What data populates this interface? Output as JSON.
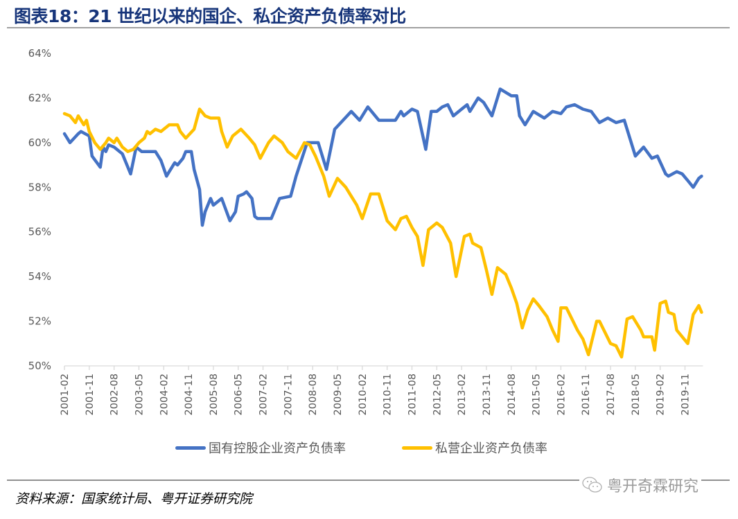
{
  "header": {
    "title": "图表18：21 世纪以来的国企、私企资产负债率对比"
  },
  "legend": [
    {
      "label": "国有控股企业资产负债率",
      "color": "#4472c4"
    },
    {
      "label": "私营企业资产负债率",
      "color": "#ffc000"
    }
  ],
  "footer": {
    "source": "资料来源：国家统计局、粤开证券研究院",
    "watermark": "粤开奇霖研究",
    "watermark_icon": "wechat-icon"
  },
  "chart_data": {
    "type": "line",
    "title": "21 世纪以来的国企、私企资产负债率对比",
    "xlabel": "",
    "ylabel": "",
    "x_start": "2001-02",
    "x_end": "2020-05",
    "ylim": [
      50,
      64
    ],
    "yticks": [
      50,
      52,
      54,
      56,
      58,
      60,
      62,
      64
    ],
    "ytick_labels": [
      "50%",
      "52%",
      "54%",
      "56%",
      "58%",
      "60%",
      "62%",
      "64%"
    ],
    "xtick_labels": [
      "2001-02",
      "2001-11",
      "2002-08",
      "2003-05",
      "2004-02",
      "2004-11",
      "2005-08",
      "2006-05",
      "2007-02",
      "2007-11",
      "2008-08",
      "2009-05",
      "2010-02",
      "2010-11",
      "2011-08",
      "2012-05",
      "2013-02",
      "2013-11",
      "2014-08",
      "2015-05",
      "2016-02",
      "2016-11",
      "2017-08",
      "2018-05",
      "2019-02",
      "2019-11"
    ],
    "grid": false,
    "legend_position": "bottom",
    "series": [
      {
        "name": "国有控股企业资产负债率",
        "color": "#4472c4",
        "points": [
          [
            "2001-02",
            60.4
          ],
          [
            "2001-04",
            60.0
          ],
          [
            "2001-07",
            60.4
          ],
          [
            "2001-08",
            60.5
          ],
          [
            "2001-11",
            60.3
          ],
          [
            "2001-12",
            59.4
          ],
          [
            "2002-03",
            58.9
          ],
          [
            "2002-04",
            59.8
          ],
          [
            "2002-05",
            59.6
          ],
          [
            "2002-06",
            59.9
          ],
          [
            "2002-08",
            59.8
          ],
          [
            "2002-11",
            59.5
          ],
          [
            "2003-02",
            58.6
          ],
          [
            "2003-04",
            59.8
          ],
          [
            "2003-06",
            59.6
          ],
          [
            "2003-08",
            59.6
          ],
          [
            "2003-11",
            59.6
          ],
          [
            "2004-01",
            59.2
          ],
          [
            "2004-03",
            58.5
          ],
          [
            "2004-04",
            58.7
          ],
          [
            "2004-06",
            59.1
          ],
          [
            "2004-07",
            59.0
          ],
          [
            "2004-09",
            59.3
          ],
          [
            "2004-10",
            59.6
          ],
          [
            "2004-12",
            59.6
          ],
          [
            "2005-01",
            58.8
          ],
          [
            "2005-03",
            57.9
          ],
          [
            "2005-04",
            56.3
          ],
          [
            "2005-05",
            56.9
          ],
          [
            "2005-07",
            57.5
          ],
          [
            "2005-08",
            57.2
          ],
          [
            "2005-11",
            57.5
          ],
          [
            "2006-02",
            56.5
          ],
          [
            "2006-04",
            56.9
          ],
          [
            "2006-05",
            57.6
          ],
          [
            "2006-07",
            57.7
          ],
          [
            "2006-08",
            57.8
          ],
          [
            "2006-10",
            57.5
          ],
          [
            "2006-11",
            56.7
          ],
          [
            "2006-12",
            56.6
          ],
          [
            "2007-05",
            56.6
          ],
          [
            "2007-08",
            57.5
          ],
          [
            "2007-12",
            57.6
          ],
          [
            "2008-02",
            58.5
          ],
          [
            "2008-06",
            60.0
          ],
          [
            "2008-10",
            60.0
          ],
          [
            "2009-01",
            58.8
          ],
          [
            "2009-04",
            60.6
          ],
          [
            "2009-07",
            61.0
          ],
          [
            "2009-10",
            61.4
          ],
          [
            "2010-01",
            61.0
          ],
          [
            "2010-04",
            61.6
          ],
          [
            "2010-08",
            61.0
          ],
          [
            "2011-02",
            61.0
          ],
          [
            "2011-04",
            61.4
          ],
          [
            "2011-05",
            61.2
          ],
          [
            "2011-08",
            61.5
          ],
          [
            "2011-10",
            61.4
          ],
          [
            "2012-01",
            59.7
          ],
          [
            "2012-03",
            61.4
          ],
          [
            "2012-05",
            61.4
          ],
          [
            "2012-07",
            61.6
          ],
          [
            "2012-09",
            61.7
          ],
          [
            "2012-11",
            61.2
          ],
          [
            "2013-02",
            61.5
          ],
          [
            "2013-04",
            61.7
          ],
          [
            "2013-05",
            61.4
          ],
          [
            "2013-08",
            62.0
          ],
          [
            "2013-10",
            61.8
          ],
          [
            "2014-01",
            61.2
          ],
          [
            "2014-04",
            62.4
          ],
          [
            "2014-08",
            62.1
          ],
          [
            "2014-10",
            62.1
          ],
          [
            "2014-11",
            61.2
          ],
          [
            "2015-01",
            60.8
          ],
          [
            "2015-04",
            61.4
          ],
          [
            "2015-08",
            61.1
          ],
          [
            "2015-11",
            61.4
          ],
          [
            "2016-02",
            61.3
          ],
          [
            "2016-04",
            61.6
          ],
          [
            "2016-07",
            61.7
          ],
          [
            "2016-10",
            61.5
          ],
          [
            "2017-01",
            61.4
          ],
          [
            "2017-04",
            60.9
          ],
          [
            "2017-07",
            61.1
          ],
          [
            "2017-10",
            60.9
          ],
          [
            "2018-01",
            61.0
          ],
          [
            "2018-05",
            59.4
          ],
          [
            "2018-08",
            59.8
          ],
          [
            "2018-11",
            59.3
          ],
          [
            "2019-01",
            59.4
          ],
          [
            "2019-04",
            58.6
          ],
          [
            "2019-05",
            58.5
          ],
          [
            "2019-08",
            58.7
          ],
          [
            "2019-10",
            58.6
          ],
          [
            "2019-12",
            58.3
          ],
          [
            "2020-02",
            58.0
          ],
          [
            "2020-04",
            58.4
          ],
          [
            "2020-05",
            58.5
          ]
        ]
      },
      {
        "name": "私营企业资产负债率",
        "color": "#ffc000",
        "points": [
          [
            "2001-02",
            61.3
          ],
          [
            "2001-04",
            61.2
          ],
          [
            "2001-06",
            60.9
          ],
          [
            "2001-07",
            61.2
          ],
          [
            "2001-09",
            60.8
          ],
          [
            "2001-10",
            61.0
          ],
          [
            "2001-11",
            60.5
          ],
          [
            "2002-01",
            60.0
          ],
          [
            "2002-03",
            59.7
          ],
          [
            "2002-05",
            60.0
          ],
          [
            "2002-06",
            60.2
          ],
          [
            "2002-08",
            60.0
          ],
          [
            "2002-09",
            60.2
          ],
          [
            "2002-11",
            59.8
          ],
          [
            "2003-01",
            59.6
          ],
          [
            "2003-03",
            59.7
          ],
          [
            "2003-05",
            60.0
          ],
          [
            "2003-07",
            60.2
          ],
          [
            "2003-08",
            60.5
          ],
          [
            "2003-09",
            60.4
          ],
          [
            "2003-11",
            60.6
          ],
          [
            "2004-01",
            60.5
          ],
          [
            "2004-02",
            60.6
          ],
          [
            "2004-04",
            60.8
          ],
          [
            "2004-07",
            60.8
          ],
          [
            "2004-08",
            60.5
          ],
          [
            "2004-10",
            60.2
          ],
          [
            "2005-01",
            60.6
          ],
          [
            "2005-03",
            61.5
          ],
          [
            "2005-05",
            61.2
          ],
          [
            "2005-07",
            61.1
          ],
          [
            "2005-10",
            61.1
          ],
          [
            "2005-11",
            60.5
          ],
          [
            "2006-01",
            59.8
          ],
          [
            "2006-03",
            60.3
          ],
          [
            "2006-06",
            60.6
          ],
          [
            "2006-09",
            60.2
          ],
          [
            "2006-11",
            59.9
          ],
          [
            "2007-01",
            59.3
          ],
          [
            "2007-04",
            60.0
          ],
          [
            "2007-06",
            60.3
          ],
          [
            "2007-09",
            60.0
          ],
          [
            "2007-11",
            59.6
          ],
          [
            "2008-02",
            59.3
          ],
          [
            "2008-05",
            60.0
          ],
          [
            "2008-07",
            59.9
          ],
          [
            "2008-09",
            59.4
          ],
          [
            "2008-12",
            58.5
          ],
          [
            "2009-02",
            57.6
          ],
          [
            "2009-05",
            58.4
          ],
          [
            "2009-08",
            58.0
          ],
          [
            "2009-12",
            57.2
          ],
          [
            "2010-02",
            56.6
          ],
          [
            "2010-05",
            57.7
          ],
          [
            "2010-08",
            57.7
          ],
          [
            "2010-11",
            56.5
          ],
          [
            "2011-02",
            56.1
          ],
          [
            "2011-04",
            56.6
          ],
          [
            "2011-06",
            56.7
          ],
          [
            "2011-08",
            56.2
          ],
          [
            "2011-10",
            55.8
          ],
          [
            "2011-12",
            54.5
          ],
          [
            "2012-02",
            56.1
          ],
          [
            "2012-05",
            56.4
          ],
          [
            "2012-07",
            56.2
          ],
          [
            "2012-10",
            55.5
          ],
          [
            "2012-12",
            54.0
          ],
          [
            "2013-03",
            55.8
          ],
          [
            "2013-05",
            55.9
          ],
          [
            "2013-06",
            55.5
          ],
          [
            "2013-09",
            55.3
          ],
          [
            "2013-11",
            54.3
          ],
          [
            "2014-01",
            53.2
          ],
          [
            "2014-03",
            54.4
          ],
          [
            "2014-06",
            54.1
          ],
          [
            "2014-08",
            53.5
          ],
          [
            "2014-10",
            52.8
          ],
          [
            "2014-12",
            51.7
          ],
          [
            "2015-02",
            52.5
          ],
          [
            "2015-04",
            53.0
          ],
          [
            "2015-06",
            52.7
          ],
          [
            "2015-09",
            52.2
          ],
          [
            "2015-11",
            51.6
          ],
          [
            "2016-01",
            51.1
          ],
          [
            "2016-02",
            52.6
          ],
          [
            "2016-04",
            52.6
          ],
          [
            "2016-06",
            52.1
          ],
          [
            "2016-08",
            51.6
          ],
          [
            "2016-10",
            51.2
          ],
          [
            "2016-12",
            50.5
          ],
          [
            "2017-03",
            52.0
          ],
          [
            "2017-04",
            52.0
          ],
          [
            "2017-06",
            51.5
          ],
          [
            "2017-08",
            51.0
          ],
          [
            "2017-10",
            50.9
          ],
          [
            "2017-12",
            50.4
          ],
          [
            "2018-02",
            52.1
          ],
          [
            "2018-04",
            52.2
          ],
          [
            "2018-07",
            51.6
          ],
          [
            "2018-08",
            51.3
          ],
          [
            "2018-11",
            51.3
          ],
          [
            "2018-12",
            50.7
          ],
          [
            "2019-02",
            52.8
          ],
          [
            "2019-04",
            52.9
          ],
          [
            "2019-05",
            52.4
          ],
          [
            "2019-07",
            52.3
          ],
          [
            "2019-08",
            51.6
          ],
          [
            "2019-10",
            51.3
          ],
          [
            "2019-12",
            51.0
          ],
          [
            "2020-02",
            52.3
          ],
          [
            "2020-04",
            52.7
          ],
          [
            "2020-05",
            52.4
          ]
        ]
      }
    ]
  }
}
